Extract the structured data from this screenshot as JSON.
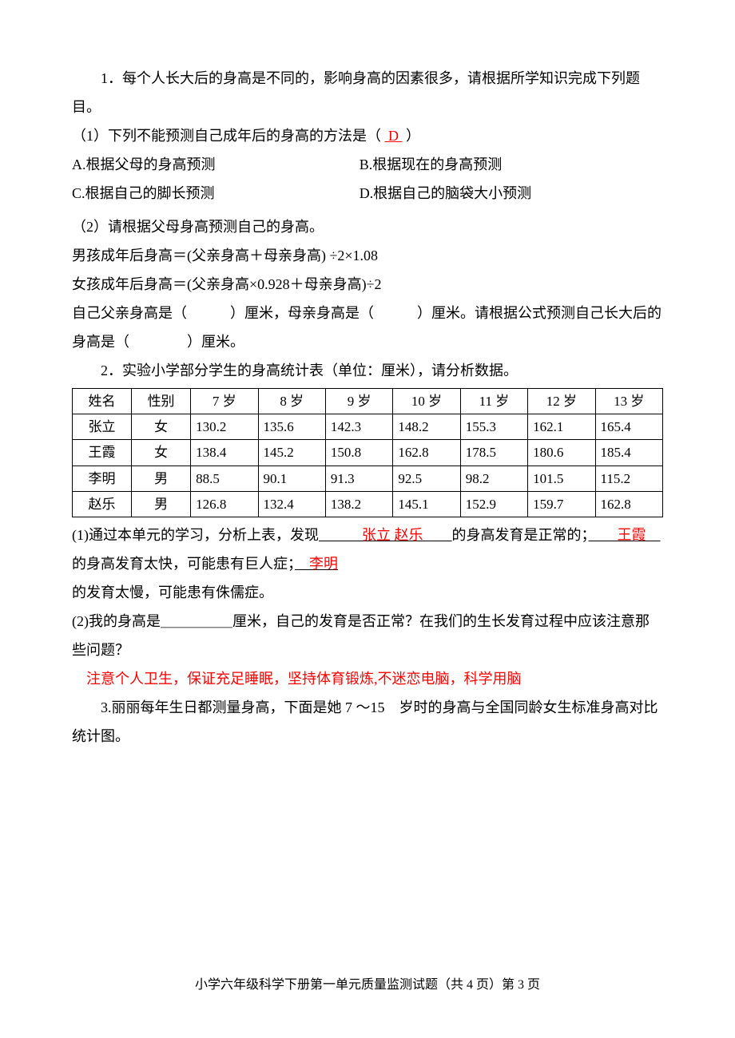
{
  "q1": {
    "intro": "1．每个人长大后的身高是不同的，影响身高的因素很多，请根据所学知识完成下列题目。",
    "part1_label": "（1）下列不能预测自己成年后的身高的方法是（",
    "part1_answer": "D",
    "part1_close": "）",
    "optA": "A.根据父母的身高预测",
    "optB": "B.根据现在的身高预测",
    "optC": "C.根据自己的脚长预测",
    "optD": "D.根据自己的脑袋大小预测",
    "part2_label": "（2）请根据父母身高预测自己的身高。",
    "formula_boy": "男孩成年后身高＝(父亲身高＋母亲身高) ÷2×1.08",
    "formula_girl": "女孩成年后身高＝(父亲身高×0.928＋母亲身高)÷2",
    "fill_line1": "自己父亲身高是（　　　）厘米，母亲身高是（　　　）厘米。请根据公式预测自己长大后的身高是（　　　　）厘米。"
  },
  "q2": {
    "intro": "2．实验小学部分学生的身高统计表（单位：厘米），请分析数据。",
    "table": {
      "headers": [
        "姓名",
        "性别",
        "7 岁",
        "8 岁",
        "9 岁",
        "10 岁",
        "11 岁",
        "12 岁",
        "13 岁"
      ],
      "rows": [
        [
          "张立",
          "女",
          "130.2",
          "135.6",
          "142.3",
          "148.2",
          "155.3",
          "162.1",
          "165.4"
        ],
        [
          "王霞",
          "女",
          "138.4",
          "145.2",
          "150.8",
          "162.8",
          "178.5",
          "180.6",
          "185.4"
        ],
        [
          "李明",
          "男",
          "88.5",
          "90.1",
          "91.3",
          "92.5",
          "98.2",
          "101.5",
          "115.2"
        ],
        [
          "赵乐",
          "男",
          "126.8",
          "132.4",
          "138.2",
          "145.1",
          "152.9",
          "159.7",
          "162.8"
        ]
      ],
      "col_widths": [
        "10%",
        "10%",
        "11.4%",
        "11.4%",
        "11.4%",
        "11.4%",
        "11.4%",
        "11.4%",
        "11.4%"
      ]
    },
    "p1_a": "(1)通过本单元的学习，分析上表，发现",
    "p1_blank1_pad": "　　　",
    "p1_ans1": "张立 赵乐",
    "p1_blank1_pad2": "　　",
    "p1_b": "的身高发育是正常的；",
    "p1_blank2_pad": "　　",
    "p1_ans2": "王霞",
    "p1_blank2_pad2": "　",
    "p1_c": "的身高发育太快，可能患有巨人症；",
    "p1_blank3_pad": "　",
    "p1_ans3": "李明",
    "p1_d": "的发育太慢，可能患有侏儒症。",
    "p2": "(2)我的身高是＿＿＿＿＿厘米，自己的发育是否正常？在我们的生长发育过程中应该注意那些问题？",
    "p2_answer": "注意个人卫生，保证充足睡眠，坚持体育锻炼,不迷恋电脑，科学用脑"
  },
  "q3": {
    "intro": "3.丽丽每年生日都测量身高，下面是她 7 ～15　岁时的身高与全国同龄女生标准身高对比统计图。"
  },
  "footer": "小学六年级科学下册第一单元质量监测试题（共 4 页）第 3 页"
}
